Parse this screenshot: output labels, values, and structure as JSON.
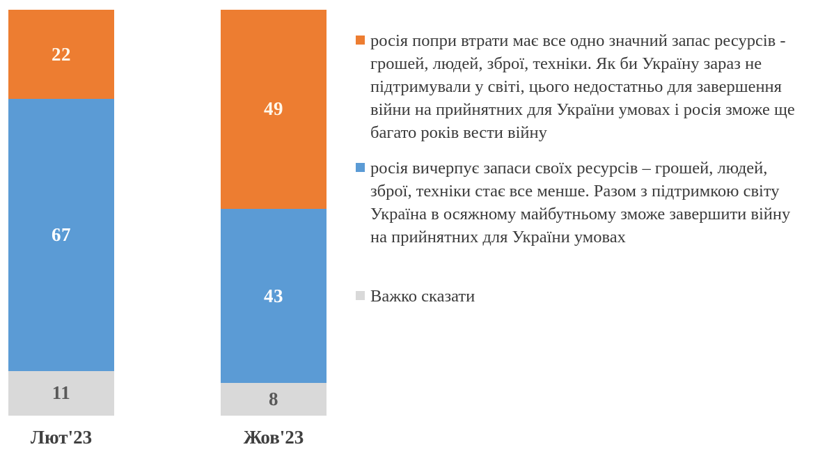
{
  "chart_data": {
    "type": "bar",
    "stacked": true,
    "orientation": "vertical",
    "title": "",
    "xlabel": "",
    "ylabel": "",
    "ylim": [
      0,
      100
    ],
    "grid": false,
    "legend_position": "right",
    "categories": [
      "Лют'23",
      "Жов'23"
    ],
    "series": [
      {
        "name": "росія попри втрати має все одно значний запас ресурсів - грошей, людей, зброї, техніки. Як би Україну зараз не підтримували у світі, цього недостатньо для завершення війни на прийнятних для України умовах і росія зможе ще багато років вести війну",
        "color": "#ED7D31",
        "label_color": "#FFF8EC",
        "values": [
          22,
          49
        ]
      },
      {
        "name": "росія вичерпує запаси своїх ресурсів – грошей, людей, зброї, техніки стає все менше. Разом з підтримкою світу Україна в осяжному майбутньому зможе завершити війну на прийнятних для України умовах",
        "color": "#5B9BD5",
        "label_color": "#FFFFFF",
        "values": [
          67,
          43
        ]
      },
      {
        "name": "Важко сказати",
        "color": "#D9D9D9",
        "label_color": "#595959",
        "values": [
          11,
          8
        ]
      }
    ]
  }
}
